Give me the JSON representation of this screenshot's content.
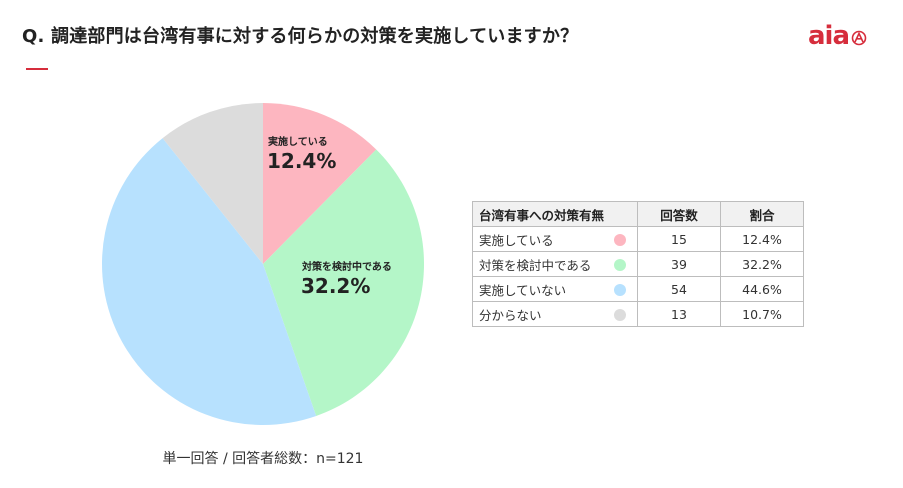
{
  "header": {
    "question": "Q. 調達部門は台湾有事に対する何らかの対策を実施していますか？",
    "logo_text": "aia",
    "accent_color": "#d62d3c"
  },
  "chart_data": {
    "type": "pie",
    "start_angle": "12 o'clock, clockwise",
    "slices": [
      {
        "label": "実施している",
        "count": 15,
        "percent": "12.4%",
        "value": 12.4,
        "color": "#fdb6c0",
        "show_label": true
      },
      {
        "label": "対策を検討中である",
        "count": 39,
        "percent": "32.2%",
        "value": 32.2,
        "color": "#b4f6c8",
        "show_label": true
      },
      {
        "label": "実施していない",
        "count": 54,
        "percent": "44.6%",
        "value": 44.6,
        "color": "#b7e1fe",
        "show_label": false
      },
      {
        "label": "分からない",
        "count": 13,
        "percent": "10.7%",
        "value": 10.7,
        "color": "#dcdcdc",
        "show_label": false
      }
    ]
  },
  "table": {
    "headers": {
      "label": "台湾有事への対策有無",
      "count": "回答数",
      "ratio": "割合"
    },
    "rows": [
      {
        "label": "実施している",
        "count": "15",
        "ratio": "12.4%",
        "color": "#fdb6c0"
      },
      {
        "label": "対策を検討中である",
        "count": "39",
        "ratio": "32.2%",
        "color": "#b4f6c8"
      },
      {
        "label": "実施していない",
        "count": "54",
        "ratio": "44.6%",
        "color": "#b7e1fe"
      },
      {
        "label": "分からない",
        "count": "13",
        "ratio": "10.7%",
        "color": "#dcdcdc"
      }
    ]
  },
  "footnote": "単一回答 / 回答者総数：n=121"
}
